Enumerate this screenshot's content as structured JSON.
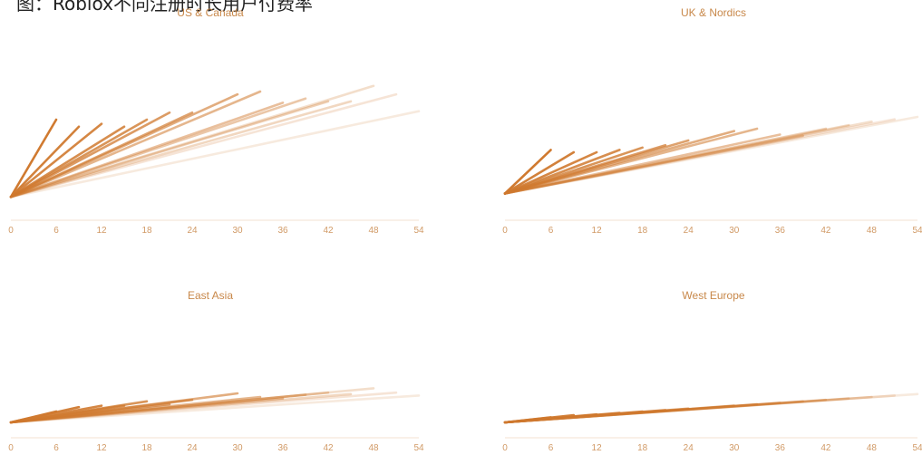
{
  "header": {
    "text": "图：Roblox不同注册时长用户付费率"
  },
  "chart_data": {
    "type": "line",
    "shared_x_ticks": [
      "0",
      "6",
      "12",
      "18",
      "24",
      "30",
      "36",
      "42",
      "48",
      "54"
    ],
    "xlim": [
      0,
      54
    ],
    "ylim": [
      0,
      1
    ],
    "grid": false,
    "legend": "none",
    "colors": {
      "line": "#d07a30",
      "title": "#c8884a",
      "tick": "#d19a66"
    },
    "panels": [
      {
        "title": "US & Canada",
        "series": [
          {
            "x": [
              0,
              6
            ],
            "y": [
              0.05,
              0.6
            ],
            "opacity": 1.0
          },
          {
            "x": [
              0,
              9
            ],
            "y": [
              0.05,
              0.55
            ],
            "opacity": 0.95
          },
          {
            "x": [
              0,
              12
            ],
            "y": [
              0.05,
              0.57
            ],
            "opacity": 0.9
          },
          {
            "x": [
              0,
              15
            ],
            "y": [
              0.05,
              0.55
            ],
            "opacity": 0.85
          },
          {
            "x": [
              0,
              18
            ],
            "y": [
              0.05,
              0.6
            ],
            "opacity": 0.8
          },
          {
            "x": [
              0,
              21
            ],
            "y": [
              0.05,
              0.65
            ],
            "opacity": 0.75
          },
          {
            "x": [
              0,
              24
            ],
            "y": [
              0.05,
              0.65
            ],
            "opacity": 0.7
          },
          {
            "x": [
              0,
              30
            ],
            "y": [
              0.05,
              0.78
            ],
            "opacity": 0.62
          },
          {
            "x": [
              0,
              33
            ],
            "y": [
              0.05,
              0.8
            ],
            "opacity": 0.55
          },
          {
            "x": [
              0,
              36
            ],
            "y": [
              0.05,
              0.72
            ],
            "opacity": 0.48
          },
          {
            "x": [
              0,
              39
            ],
            "y": [
              0.05,
              0.75
            ],
            "opacity": 0.42
          },
          {
            "x": [
              0,
              42
            ],
            "y": [
              0.05,
              0.73
            ],
            "opacity": 0.36
          },
          {
            "x": [
              0,
              45
            ],
            "y": [
              0.05,
              0.73
            ],
            "opacity": 0.3
          },
          {
            "x": [
              0,
              48
            ],
            "y": [
              0.05,
              0.84
            ],
            "opacity": 0.25
          },
          {
            "x": [
              0,
              51
            ],
            "y": [
              0.05,
              0.78
            ],
            "opacity": 0.2
          },
          {
            "x": [
              0,
              54
            ],
            "y": [
              0.05,
              0.66
            ],
            "opacity": 0.16
          }
        ]
      },
      {
        "title": "UK & Nordics",
        "series": [
          {
            "x": [
              0,
              6
            ],
            "y": [
              0.05,
              0.42
            ],
            "opacity": 1.0
          },
          {
            "x": [
              0,
              9
            ],
            "y": [
              0.05,
              0.4
            ],
            "opacity": 0.95
          },
          {
            "x": [
              0,
              12
            ],
            "y": [
              0.05,
              0.4
            ],
            "opacity": 0.9
          },
          {
            "x": [
              0,
              15
            ],
            "y": [
              0.05,
              0.42
            ],
            "opacity": 0.85
          },
          {
            "x": [
              0,
              18
            ],
            "y": [
              0.05,
              0.44
            ],
            "opacity": 0.8
          },
          {
            "x": [
              0,
              21
            ],
            "y": [
              0.05,
              0.46
            ],
            "opacity": 0.75
          },
          {
            "x": [
              0,
              24
            ],
            "y": [
              0.05,
              0.5
            ],
            "opacity": 0.7
          },
          {
            "x": [
              0,
              30
            ],
            "y": [
              0.05,
              0.58
            ],
            "opacity": 0.62
          },
          {
            "x": [
              0,
              33
            ],
            "y": [
              0.05,
              0.6
            ],
            "opacity": 0.55
          },
          {
            "x": [
              0,
              36
            ],
            "y": [
              0.05,
              0.55
            ],
            "opacity": 0.48
          },
          {
            "x": [
              0,
              39
            ],
            "y": [
              0.05,
              0.54
            ],
            "opacity": 0.42
          },
          {
            "x": [
              0,
              42
            ],
            "y": [
              0.05,
              0.6
            ],
            "opacity": 0.36
          },
          {
            "x": [
              0,
              45
            ],
            "y": [
              0.05,
              0.63
            ],
            "opacity": 0.3
          },
          {
            "x": [
              0,
              48
            ],
            "y": [
              0.05,
              0.66
            ],
            "opacity": 0.25
          },
          {
            "x": [
              0,
              51
            ],
            "y": [
              0.05,
              0.68
            ],
            "opacity": 0.2
          },
          {
            "x": [
              0,
              54
            ],
            "y": [
              0.05,
              0.7
            ],
            "opacity": 0.16
          }
        ]
      },
      {
        "title": "East Asia",
        "series": [
          {
            "x": [
              0,
              6
            ],
            "y": [
              0.05,
              0.2
            ],
            "opacity": 1.0
          },
          {
            "x": [
              0,
              9
            ],
            "y": [
              0.05,
              0.26
            ],
            "opacity": 0.95
          },
          {
            "x": [
              0,
              12
            ],
            "y": [
              0.05,
              0.28
            ],
            "opacity": 0.9
          },
          {
            "x": [
              0,
              15
            ],
            "y": [
              0.05,
              0.28
            ],
            "opacity": 0.85
          },
          {
            "x": [
              0,
              18
            ],
            "y": [
              0.05,
              0.34
            ],
            "opacity": 0.8
          },
          {
            "x": [
              0,
              21
            ],
            "y": [
              0.05,
              0.3
            ],
            "opacity": 0.75
          },
          {
            "x": [
              0,
              24
            ],
            "y": [
              0.05,
              0.36
            ],
            "opacity": 0.7
          },
          {
            "x": [
              0,
              30
            ],
            "y": [
              0.05,
              0.45
            ],
            "opacity": 0.62
          },
          {
            "x": [
              0,
              33
            ],
            "y": [
              0.05,
              0.4
            ],
            "opacity": 0.55
          },
          {
            "x": [
              0,
              36
            ],
            "y": [
              0.05,
              0.38
            ],
            "opacity": 0.48
          },
          {
            "x": [
              0,
              39
            ],
            "y": [
              0.05,
              0.43
            ],
            "opacity": 0.42
          },
          {
            "x": [
              0,
              42
            ],
            "y": [
              0.05,
              0.46
            ],
            "opacity": 0.36
          },
          {
            "x": [
              0,
              45
            ],
            "y": [
              0.05,
              0.44
            ],
            "opacity": 0.3
          },
          {
            "x": [
              0,
              48
            ],
            "y": [
              0.05,
              0.52
            ],
            "opacity": 0.25
          },
          {
            "x": [
              0,
              51
            ],
            "y": [
              0.05,
              0.46
            ],
            "opacity": 0.2
          },
          {
            "x": [
              0,
              54
            ],
            "y": [
              0.05,
              0.42
            ],
            "opacity": 0.16
          }
        ]
      },
      {
        "title": "West Europe",
        "series": [
          {
            "x": [
              0,
              6
            ],
            "y": [
              0.05,
              0.12
            ],
            "opacity": 1.0
          },
          {
            "x": [
              0,
              9
            ],
            "y": [
              0.05,
              0.15
            ],
            "opacity": 0.95
          },
          {
            "x": [
              0,
              12
            ],
            "y": [
              0.05,
              0.16
            ],
            "opacity": 0.9
          },
          {
            "x": [
              0,
              15
            ],
            "y": [
              0.05,
              0.18
            ],
            "opacity": 0.85
          },
          {
            "x": [
              0,
              18
            ],
            "y": [
              0.05,
              0.2
            ],
            "opacity": 0.8
          },
          {
            "x": [
              0,
              21
            ],
            "y": [
              0.05,
              0.22
            ],
            "opacity": 0.75
          },
          {
            "x": [
              0,
              24
            ],
            "y": [
              0.05,
              0.24
            ],
            "opacity": 0.7
          },
          {
            "x": [
              0,
              30
            ],
            "y": [
              0.05,
              0.28
            ],
            "opacity": 0.62
          },
          {
            "x": [
              0,
              33
            ],
            "y": [
              0.05,
              0.3
            ],
            "opacity": 0.55
          },
          {
            "x": [
              0,
              36
            ],
            "y": [
              0.05,
              0.32
            ],
            "opacity": 0.48
          },
          {
            "x": [
              0,
              39
            ],
            "y": [
              0.05,
              0.34
            ],
            "opacity": 0.42
          },
          {
            "x": [
              0,
              42
            ],
            "y": [
              0.05,
              0.36
            ],
            "opacity": 0.36
          },
          {
            "x": [
              0,
              45
            ],
            "y": [
              0.05,
              0.38
            ],
            "opacity": 0.3
          },
          {
            "x": [
              0,
              48
            ],
            "y": [
              0.05,
              0.4
            ],
            "opacity": 0.25
          },
          {
            "x": [
              0,
              51
            ],
            "y": [
              0.05,
              0.42
            ],
            "opacity": 0.2
          },
          {
            "x": [
              0,
              54
            ],
            "y": [
              0.05,
              0.44
            ],
            "opacity": 0.16
          }
        ]
      }
    ]
  }
}
